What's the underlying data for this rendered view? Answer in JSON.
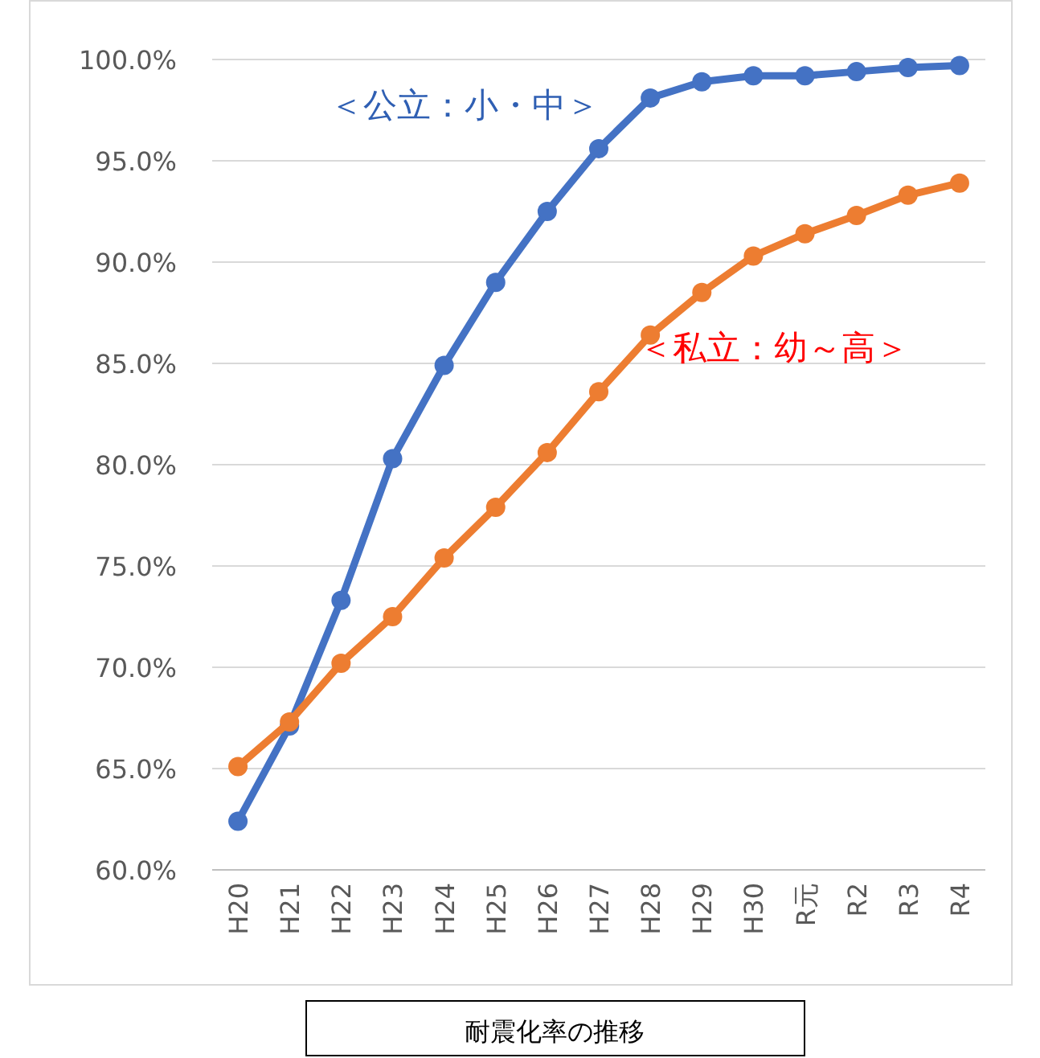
{
  "chart_data": {
    "type": "line",
    "title": "耐震化率の推移",
    "categories": [
      "H20",
      "H21",
      "H22",
      "H23",
      "H24",
      "H25",
      "H26",
      "H27",
      "H28",
      "H29",
      "H30",
      "R元",
      "R2",
      "R3",
      "R4"
    ],
    "series": [
      {
        "name": "＜公立：小・中＞",
        "color": "#4472c4",
        "values": [
          62.4,
          67.1,
          73.3,
          80.3,
          84.9,
          89.0,
          92.5,
          95.6,
          98.1,
          98.9,
          99.2,
          99.2,
          99.4,
          99.6,
          99.7
        ]
      },
      {
        "name": "＜私立：幼～高＞",
        "color": "#ed7d31",
        "values": [
          65.1,
          67.3,
          70.2,
          72.5,
          75.4,
          77.9,
          80.6,
          83.6,
          86.4,
          88.5,
          90.3,
          91.4,
          92.3,
          93.3,
          93.9
        ]
      }
    ],
    "ylim": [
      60,
      100
    ],
    "yticks": [
      {
        "value": 60,
        "label": "60.0%"
      },
      {
        "value": 65,
        "label": "65.0%"
      },
      {
        "value": 70,
        "label": "70.0%"
      },
      {
        "value": 75,
        "label": "75.0%"
      },
      {
        "value": 80,
        "label": "80.0%"
      },
      {
        "value": 85,
        "label": "85.0%"
      },
      {
        "value": 90,
        "label": "90.0%"
      },
      {
        "value": 95,
        "label": "95.0%"
      },
      {
        "value": 100,
        "label": "100.0%"
      }
    ],
    "grid": "y",
    "marker": "circle",
    "line_style": "solid"
  }
}
